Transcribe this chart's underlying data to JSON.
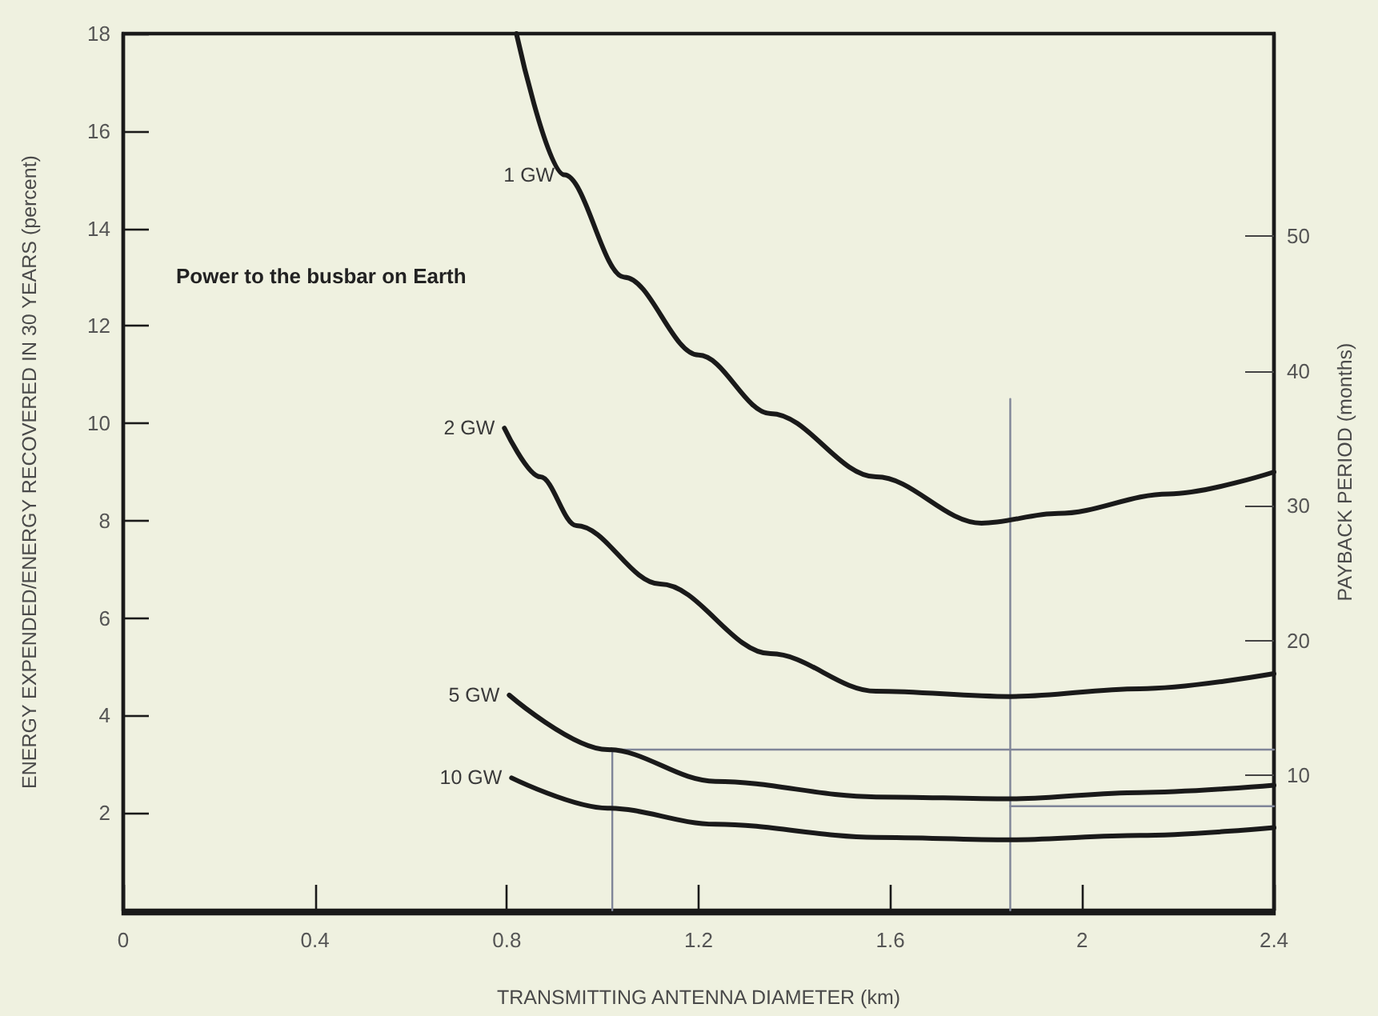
{
  "chart_data": {
    "type": "line",
    "xlabel": "TRANSMITTING ANTENNA DIAMETER (km)",
    "ylabel": "ENERGY EXPENDED/ENERGY RECOVERED IN 30 YEARS (percent)",
    "y2label": "PAYBACK PERIOD (months)",
    "annotations": [
      "Power to the busbar on Earth"
    ],
    "xlim": [
      0,
      2.4
    ],
    "xticks": [
      0,
      0.4,
      0.8,
      1.2,
      1.6,
      2.0,
      2.4
    ],
    "ylim": [
      0,
      18
    ],
    "yticks": [
      2,
      4,
      6,
      8,
      10,
      12,
      14,
      16,
      18
    ],
    "y2lim": [
      0,
      65
    ],
    "y2ticks": [
      10,
      20,
      30,
      40,
      50
    ],
    "marker": "none",
    "line_style": "solid",
    "series": [
      {
        "name": "1 GW",
        "color": "#1a1a1a",
        "x": [
          0.82,
          0.92,
          1.045,
          1.2,
          1.35,
          1.57,
          1.79,
          1.95,
          2.18,
          2.4
        ],
        "values": [
          18,
          15.1,
          13.0,
          11.4,
          10.2,
          8.9,
          7.95,
          8.15,
          8.55,
          9.0
        ]
      },
      {
        "name": "2 GW",
        "color": "#1a1a1a",
        "x": [
          0.795,
          0.87,
          0.945,
          1.12,
          1.35,
          1.57,
          1.85,
          2.12,
          2.4
        ],
        "values": [
          9.9,
          8.9,
          7.9,
          6.7,
          5.27,
          4.5,
          4.39,
          4.55,
          4.86
        ]
      },
      {
        "name": "5 GW",
        "color": "#1a1a1a",
        "x": [
          0.805,
          1.01,
          1.235,
          1.57,
          1.85,
          2.12,
          2.4
        ],
        "values": [
          4.42,
          3.3,
          2.65,
          2.33,
          2.29,
          2.42,
          2.57
        ]
      },
      {
        "name": "10 GW",
        "color": "#1a1a1a",
        "x": [
          0.81,
          1.01,
          1.235,
          1.57,
          1.85,
          2.12,
          2.4
        ],
        "values": [
          2.72,
          2.1,
          1.77,
          1.5,
          1.45,
          1.54,
          1.7
        ]
      },
      {
        "color": "#7f8598",
        "x": [
          1.02,
          1.02,
          2.4
        ],
        "values": [
          0,
          3.3,
          3.3
        ]
      },
      {
        "color": "#7f8598",
        "x": [
          1.85,
          1.85
        ],
        "values": [
          0,
          10.5
        ]
      },
      {
        "color": "#7f8598",
        "x": [
          1.85,
          2.4
        ],
        "values": [
          2.14,
          2.14
        ]
      }
    ]
  }
}
